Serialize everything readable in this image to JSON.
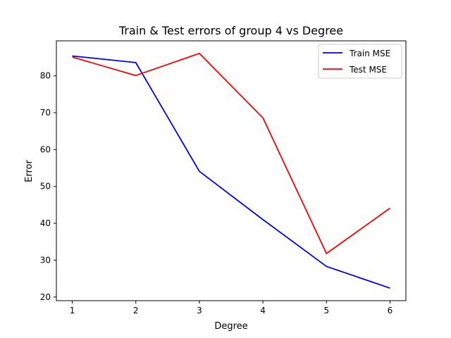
{
  "chart_data": {
    "type": "line",
    "title": "Train & Test errors of group 4 vs Degree",
    "xlabel": "Degree",
    "ylabel": "Error",
    "x": [
      1,
      2,
      3,
      4,
      5,
      6
    ],
    "xlim": [
      0.75,
      6.25
    ],
    "ylim": [
      19.0,
      89.5
    ],
    "xticks": [
      1,
      2,
      3,
      4,
      5,
      6
    ],
    "yticks": [
      20,
      30,
      40,
      50,
      60,
      70,
      80
    ],
    "grid": false,
    "legend_position": "top-right",
    "series": [
      {
        "name": "Train MSE",
        "color": "#0000ff",
        "values": [
          85.4,
          83.6,
          54.1,
          41.0,
          28.3,
          22.4
        ]
      },
      {
        "name": "Test MSE",
        "color": "#ff0000",
        "values": [
          85.1,
          80.1,
          86.1,
          68.6,
          31.8,
          44.1
        ]
      }
    ]
  }
}
